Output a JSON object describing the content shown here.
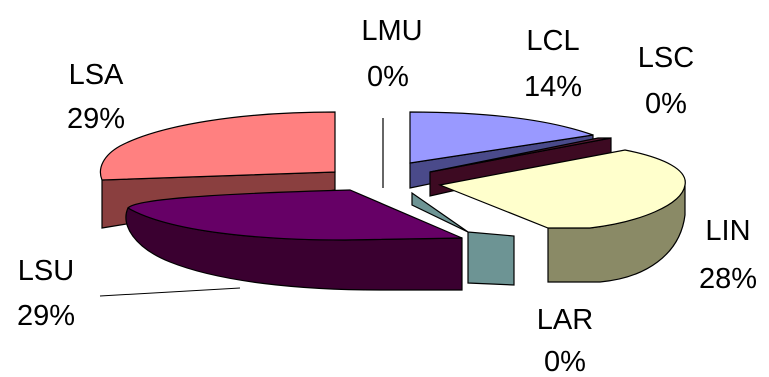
{
  "chart_data": {
    "type": "pie",
    "style": "3d-exploded",
    "slices": [
      {
        "label": "LMU",
        "percent_label": "0%",
        "value": 0,
        "color": "#FFFFFF"
      },
      {
        "label": "LCL",
        "percent_label": "14%",
        "value": 14,
        "color": "#9999FF"
      },
      {
        "label": "LSC",
        "percent_label": "0%",
        "value": 0,
        "color": "#5A1A36"
      },
      {
        "label": "LIN",
        "percent_label": "28%",
        "value": 28,
        "color": "#FFFFCC"
      },
      {
        "label": "LAR",
        "percent_label": "0%",
        "value": 0,
        "color": "#6D9494"
      },
      {
        "label": "LSU",
        "percent_label": "29%",
        "value": 29,
        "color": "#660066"
      },
      {
        "label": "LSA",
        "percent_label": "29%",
        "value": 29,
        "color": "#FF8080"
      }
    ]
  }
}
